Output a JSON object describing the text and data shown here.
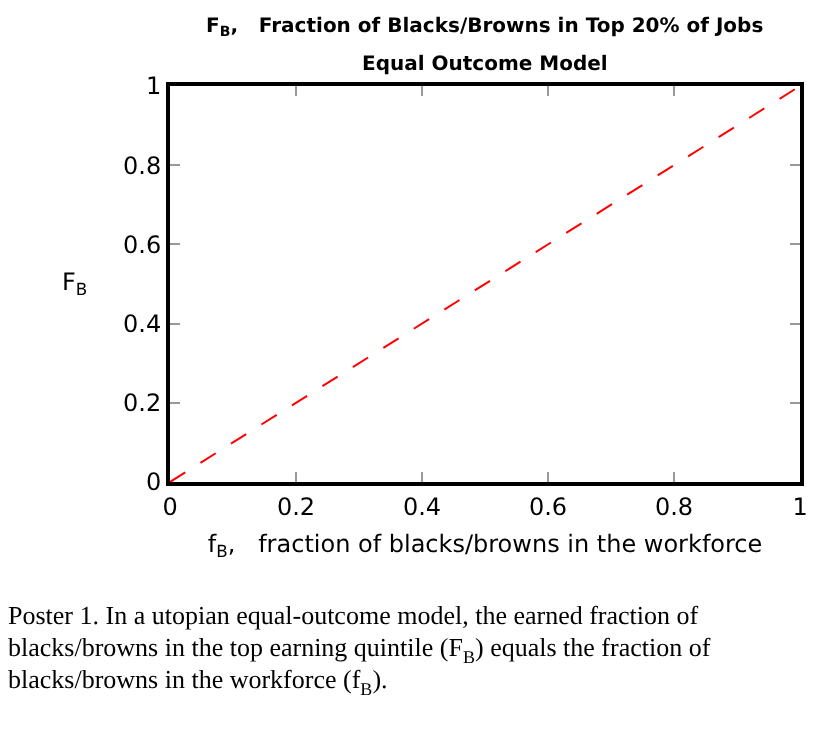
{
  "chart_data": {
    "type": "line",
    "title": "F$_{B}$,   Fraction of Blacks/Browns in Top 20% of Jobs",
    "subtitle": "Equal Outcome Model",
    "xlabel": "f$_{B}$,   fraction of blacks/browns in the workforce",
    "ylabel": "F$_{B}$",
    "x": [
      0,
      1
    ],
    "series": [
      {
        "color": "#ff0000",
        "values": [
          0,
          1
        ]
      }
    ],
    "line_style": "dashed",
    "grid": false,
    "xlim": [
      0,
      1
    ],
    "xticks": [
      0,
      0.2,
      0.4,
      0.6,
      0.8,
      1
    ],
    "ylim": [
      0,
      1
    ],
    "yticks": [
      0,
      0.2,
      0.4,
      0.6,
      0.8,
      1
    ],
    "annotations": [
      "Poster 1. In a utopian equal-outcome model, the earned fraction of blacks/browns in the top earning quintile (F$_{B}$) equals the fraction of blacks/browns in the workforce (f$_{B}$)."
    ]
  }
}
